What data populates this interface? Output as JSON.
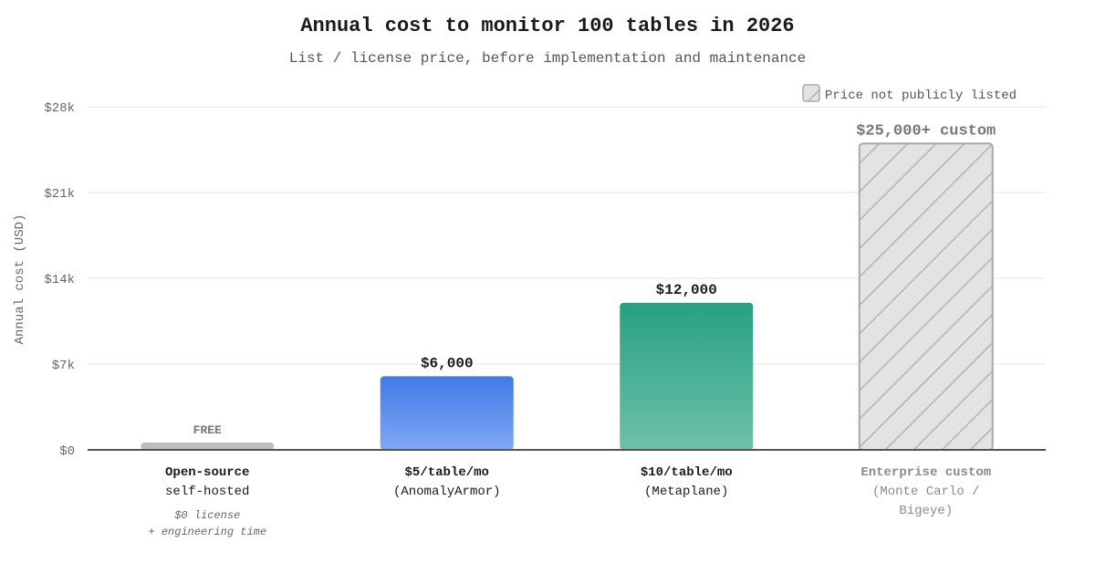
{
  "chart_data": {
    "type": "bar",
    "title": "Annual cost to monitor 100 tables in 2026",
    "subtitle": "List / license price, before implementation and maintenance",
    "ylabel": "Annual cost (USD)",
    "ylim": [
      0,
      28000
    ],
    "yticks": [
      0,
      7000,
      14000,
      21000,
      28000
    ],
    "ytick_labels": [
      "$0",
      "$7k",
      "$14k",
      "$21k",
      "$28k"
    ],
    "legend": {
      "label": "Price not publicly listed",
      "position": "top-right"
    },
    "categories": [
      {
        "line1": "Open-source",
        "line2": "self-hosted",
        "note1": "$0 license",
        "note2": "+ engineering time"
      },
      {
        "line1": "$5/table/mo",
        "line2": "(AnomalyArmor)"
      },
      {
        "line1": "$10/table/mo",
        "line2": "(Metaplane)"
      },
      {
        "line1": "Enterprise custom",
        "line2": "(Monte Carlo /",
        "line3": "Bigeye)"
      }
    ],
    "values": [
      0,
      6000,
      12000,
      25000
    ],
    "value_labels": [
      "FREE",
      "$6,000",
      "$12,000",
      "$25,000+ custom"
    ],
    "bar_styles": [
      "free",
      "blue",
      "green",
      "hatched"
    ],
    "colors": {
      "free": "#bdbdbd",
      "blue_top": "#3f7ae8",
      "blue_bottom": "#80a8f2",
      "green_top": "#27a082",
      "green_bottom": "#6dc0a9",
      "hatch_fill": "#e3e3e3",
      "hatch_stroke": "#a9a9a9",
      "axis": "#555555",
      "grid": "#e6e6e6"
    }
  }
}
